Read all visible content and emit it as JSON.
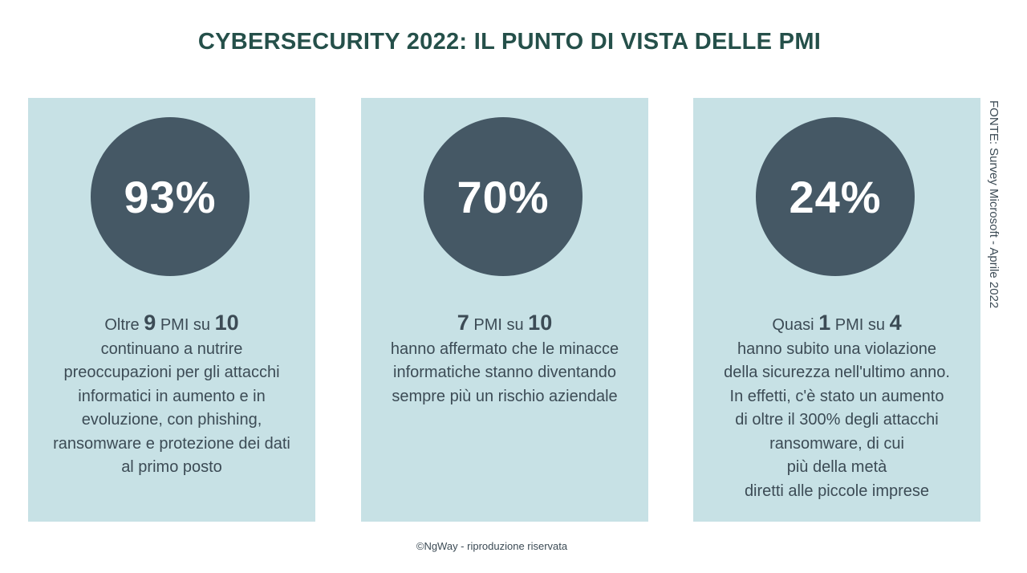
{
  "title": "CYBERSECURITY 2022: IL PUNTO DI VISTA DELLE PMI",
  "source": "FONTE: Survey Microsoft - Aprile 2022",
  "footer": "©NgWay - riproduzione riservata",
  "cards": [
    {
      "percent": "93%",
      "lead": {
        "pre": "Oltre ",
        "num1": "9",
        "mid": " PMI su ",
        "num2": "10"
      },
      "lines": [
        "continuano a nutrire",
        "preoccupazioni per gli attacchi",
        "informatici in aumento e in",
        "evoluzione, con phishing,",
        "ransomware e protezione dei dati",
        "al primo posto"
      ]
    },
    {
      "percent": "70%",
      "lead": {
        "pre": "",
        "num1": "7",
        "mid": " PMI su ",
        "num2": "10"
      },
      "lines": [
        "hanno affermato che le minacce",
        "informatiche stanno diventando",
        "sempre più un rischio aziendale"
      ]
    },
    {
      "percent": "24%",
      "lead": {
        "pre": "Quasi ",
        "num1": "1",
        "mid": " PMI su ",
        "num2": "4"
      },
      "lines": [
        "hanno subito una violazione",
        "della sicurezza nell'ultimo anno.",
        "In effetti, c'è stato un aumento",
        "di oltre il 300% degli attacchi",
        "ransomware, di cui",
        "più della metà",
        "diretti alle piccole imprese"
      ]
    }
  ]
}
